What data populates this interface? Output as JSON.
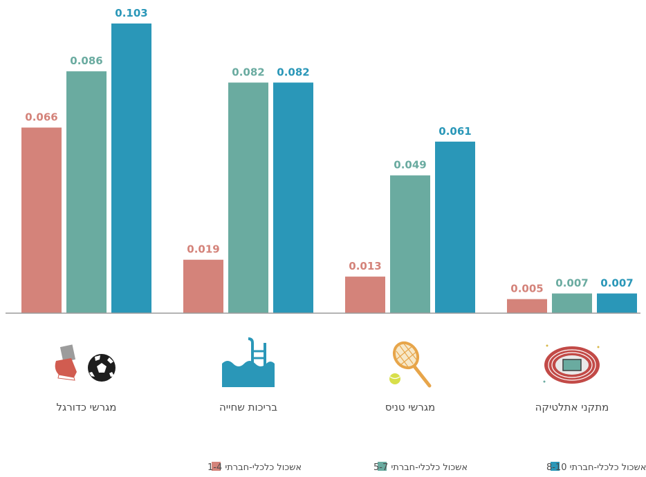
{
  "chart_data": {
    "type": "bar",
    "categories": [
      "מגרשי כדורגל",
      "בריכות שחייה",
      "מגרשי טניס",
      "מתקני אתלטיקה"
    ],
    "category_icons": [
      "soccer-icon",
      "swimming-pool-icon",
      "tennis-icon",
      "athletics-track-icon"
    ],
    "series": [
      {
        "name": "אשכול כלכלי-חברתי 1-4",
        "color": "#d4837a",
        "values": [
          0.066,
          0.019,
          0.013,
          0.005
        ],
        "labels": [
          "0.066",
          "0.019",
          "0.013",
          "0.005"
        ]
      },
      {
        "name": "אשכול כלכלי-חברתי 5-7",
        "color": "#6aaba0",
        "values": [
          0.086,
          0.082,
          0.049,
          0.007
        ],
        "labels": [
          "0.086",
          "0.082",
          "0.049",
          "0.007"
        ]
      },
      {
        "name": "אשכול כלכלי-חברתי 8-10",
        "color": "#2a97b8",
        "values": [
          0.103,
          0.082,
          0.061,
          0.007
        ],
        "labels": [
          "0.103",
          "0.082",
          "0.061",
          "0.007"
        ]
      }
    ],
    "ylim": [
      0,
      0.103
    ],
    "grid": false,
    "legend_position": "bottom",
    "baseline_color": "#9a9a9a"
  }
}
